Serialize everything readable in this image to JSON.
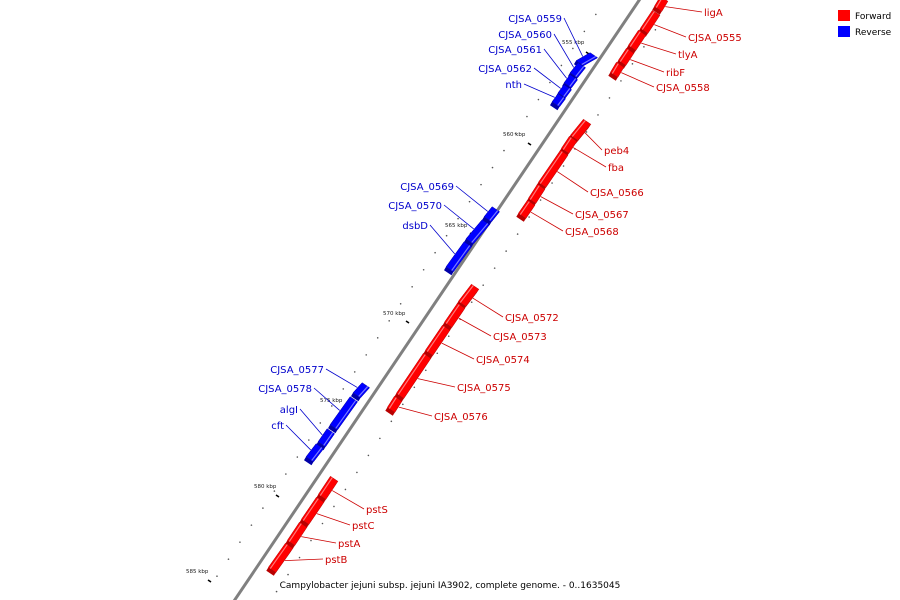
{
  "colors": {
    "forward": "#ff0000",
    "forward_dark": "#b80000",
    "forward_light": "#ff7a7a",
    "reverse": "#0000ff",
    "reverse_dark": "#0000a8",
    "reverse_light": "#7a7aff",
    "forward_label": "#cc0000",
    "reverse_label": "#0000cc",
    "backbone": "#808080"
  },
  "legend": {
    "forward": "Forward",
    "reverse": "Reverse"
  },
  "caption": "Campylobacter jejuni subsp. jejuni IA3902, complete genome. - 0..1635045",
  "kbp_ticks": [
    {
      "label": "555 kbp",
      "kbp": 555
    },
    {
      "label": "560 kbp",
      "kbp": 560
    },
    {
      "label": "565 kbp",
      "kbp": 565
    },
    {
      "label": "570 kbp",
      "kbp": 570
    },
    {
      "label": "575 kbp",
      "kbp": 575
    },
    {
      "label": "580 kbp",
      "kbp": 580
    },
    {
      "label": "585 kbp",
      "kbp": 585
    }
  ],
  "genes": [
    {
      "name": "ligA",
      "strand": "forward"
    },
    {
      "name": "CJSA_0555",
      "strand": "forward"
    },
    {
      "name": "tlyA",
      "strand": "forward"
    },
    {
      "name": "ribF",
      "strand": "forward"
    },
    {
      "name": "CJSA_0558",
      "strand": "forward"
    },
    {
      "name": "CJSA_0559",
      "strand": "reverse"
    },
    {
      "name": "CJSA_0560",
      "strand": "reverse"
    },
    {
      "name": "CJSA_0561",
      "strand": "reverse"
    },
    {
      "name": "CJSA_0562",
      "strand": "reverse"
    },
    {
      "name": "nth",
      "strand": "reverse"
    },
    {
      "name": "peb4",
      "strand": "forward"
    },
    {
      "name": "fba",
      "strand": "forward"
    },
    {
      "name": "CJSA_0566",
      "strand": "forward"
    },
    {
      "name": "CJSA_0567",
      "strand": "forward"
    },
    {
      "name": "CJSA_0568",
      "strand": "forward"
    },
    {
      "name": "CJSA_0569",
      "strand": "reverse"
    },
    {
      "name": "CJSA_0570",
      "strand": "reverse"
    },
    {
      "name": "dsbD",
      "strand": "reverse"
    },
    {
      "name": "CJSA_0572",
      "strand": "forward"
    },
    {
      "name": "CJSA_0573",
      "strand": "forward"
    },
    {
      "name": "CJSA_0574",
      "strand": "forward"
    },
    {
      "name": "CJSA_0575",
      "strand": "forward"
    },
    {
      "name": "CJSA_0576",
      "strand": "forward"
    },
    {
      "name": "CJSA_0577",
      "strand": "reverse"
    },
    {
      "name": "CJSA_0578",
      "strand": "reverse"
    },
    {
      "name": "algI",
      "strand": "reverse"
    },
    {
      "name": "cft",
      "strand": "reverse"
    },
    {
      "name": "pstS",
      "strand": "forward"
    },
    {
      "name": "pstC",
      "strand": "forward"
    },
    {
      "name": "pstA",
      "strand": "forward"
    },
    {
      "name": "pstB",
      "strand": "forward"
    }
  ]
}
